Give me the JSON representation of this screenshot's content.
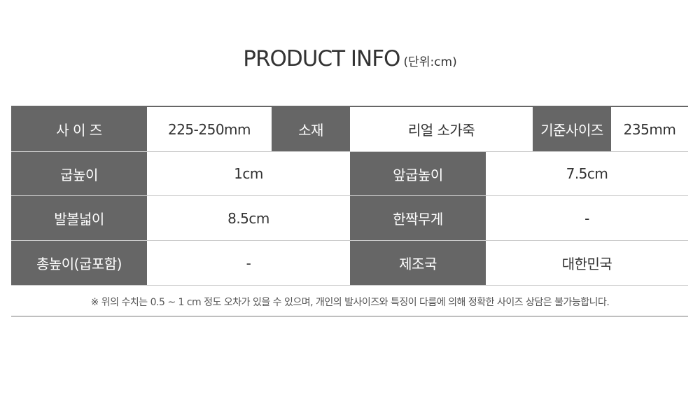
{
  "title": {
    "main": "PRODUCT INFO",
    "unit": "(단위:cm)"
  },
  "row1": {
    "size_label": "사 이 즈",
    "size_value": "225-250mm",
    "material_label": "소재",
    "material_value": "리얼 소가죽",
    "base_size_label": "기준사이즈",
    "base_size_value": "235mm"
  },
  "rows": [
    {
      "label1": "굽높이",
      "value1": "1cm",
      "label2": "앞굽높이",
      "value2": "7.5cm"
    },
    {
      "label1": "발볼넓이",
      "value1": "8.5cm",
      "label2": "한짝무게",
      "value2": "-"
    },
    {
      "label1": "총높이(굽포함)",
      "value1": "-",
      "label2": "제조국",
      "value2": "대한민국"
    }
  ],
  "note": "※ 위의 수치는 0.5 ~ 1 cm 정도 오차가 있을 수 있으며, 개인의 발사이즈와 특징이 다름에 의해 정확한 사이즈 상담은 불가능합니다.",
  "colors": {
    "header_bg": "#666666",
    "header_text": "#ffffff",
    "value_text": "#333333"
  }
}
